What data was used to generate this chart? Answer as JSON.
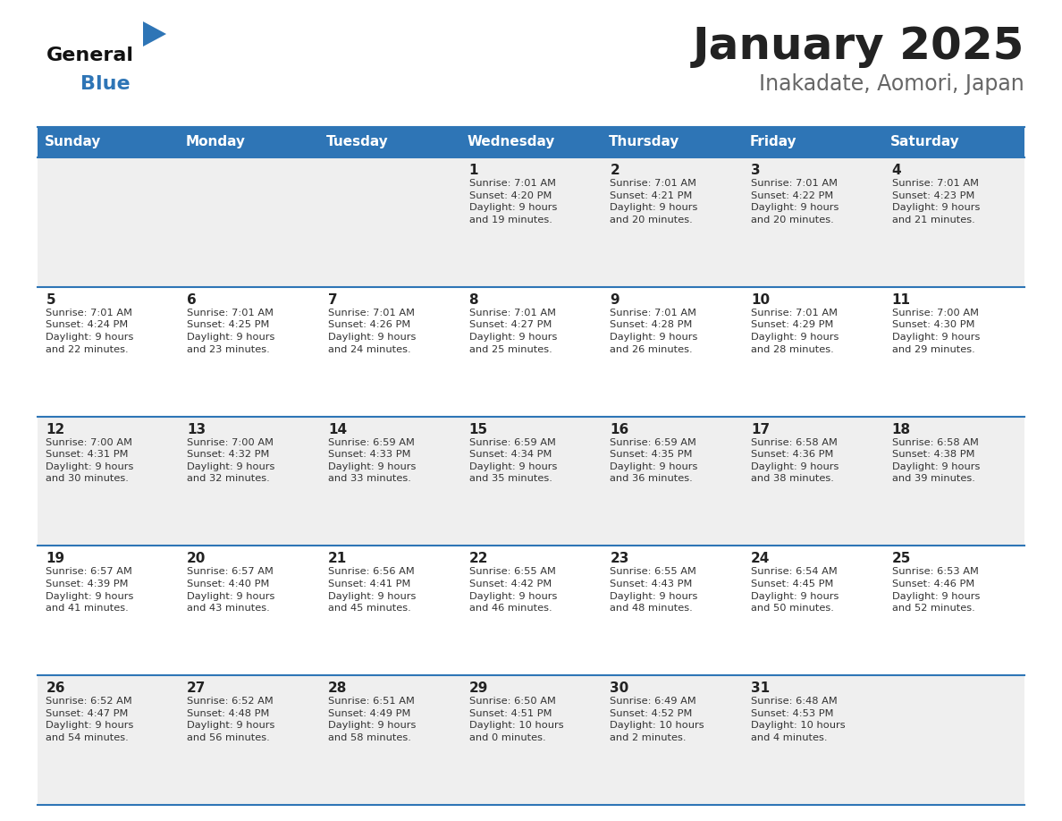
{
  "title": "January 2025",
  "subtitle": "Inakadate, Aomori, Japan",
  "days_of_week": [
    "Sunday",
    "Monday",
    "Tuesday",
    "Wednesday",
    "Thursday",
    "Friday",
    "Saturday"
  ],
  "header_bg": "#2E75B6",
  "header_text": "#FFFFFF",
  "cell_bg_even": "#EFEFEF",
  "cell_bg_odd": "#FFFFFF",
  "row_line_color": "#2E75B6",
  "day_num_color": "#222222",
  "cell_text_color": "#333333",
  "title_color": "#222222",
  "subtitle_color": "#666666",
  "logo_general_color": "#111111",
  "logo_blue_color": "#2E75B6",
  "calendar": [
    [
      {
        "day": null,
        "info": null
      },
      {
        "day": null,
        "info": null
      },
      {
        "day": null,
        "info": null
      },
      {
        "day": 1,
        "info": "Sunrise: 7:01 AM\nSunset: 4:20 PM\nDaylight: 9 hours\nand 19 minutes."
      },
      {
        "day": 2,
        "info": "Sunrise: 7:01 AM\nSunset: 4:21 PM\nDaylight: 9 hours\nand 20 minutes."
      },
      {
        "day": 3,
        "info": "Sunrise: 7:01 AM\nSunset: 4:22 PM\nDaylight: 9 hours\nand 20 minutes."
      },
      {
        "day": 4,
        "info": "Sunrise: 7:01 AM\nSunset: 4:23 PM\nDaylight: 9 hours\nand 21 minutes."
      }
    ],
    [
      {
        "day": 5,
        "info": "Sunrise: 7:01 AM\nSunset: 4:24 PM\nDaylight: 9 hours\nand 22 minutes."
      },
      {
        "day": 6,
        "info": "Sunrise: 7:01 AM\nSunset: 4:25 PM\nDaylight: 9 hours\nand 23 minutes."
      },
      {
        "day": 7,
        "info": "Sunrise: 7:01 AM\nSunset: 4:26 PM\nDaylight: 9 hours\nand 24 minutes."
      },
      {
        "day": 8,
        "info": "Sunrise: 7:01 AM\nSunset: 4:27 PM\nDaylight: 9 hours\nand 25 minutes."
      },
      {
        "day": 9,
        "info": "Sunrise: 7:01 AM\nSunset: 4:28 PM\nDaylight: 9 hours\nand 26 minutes."
      },
      {
        "day": 10,
        "info": "Sunrise: 7:01 AM\nSunset: 4:29 PM\nDaylight: 9 hours\nand 28 minutes."
      },
      {
        "day": 11,
        "info": "Sunrise: 7:00 AM\nSunset: 4:30 PM\nDaylight: 9 hours\nand 29 minutes."
      }
    ],
    [
      {
        "day": 12,
        "info": "Sunrise: 7:00 AM\nSunset: 4:31 PM\nDaylight: 9 hours\nand 30 minutes."
      },
      {
        "day": 13,
        "info": "Sunrise: 7:00 AM\nSunset: 4:32 PM\nDaylight: 9 hours\nand 32 minutes."
      },
      {
        "day": 14,
        "info": "Sunrise: 6:59 AM\nSunset: 4:33 PM\nDaylight: 9 hours\nand 33 minutes."
      },
      {
        "day": 15,
        "info": "Sunrise: 6:59 AM\nSunset: 4:34 PM\nDaylight: 9 hours\nand 35 minutes."
      },
      {
        "day": 16,
        "info": "Sunrise: 6:59 AM\nSunset: 4:35 PM\nDaylight: 9 hours\nand 36 minutes."
      },
      {
        "day": 17,
        "info": "Sunrise: 6:58 AM\nSunset: 4:36 PM\nDaylight: 9 hours\nand 38 minutes."
      },
      {
        "day": 18,
        "info": "Sunrise: 6:58 AM\nSunset: 4:38 PM\nDaylight: 9 hours\nand 39 minutes."
      }
    ],
    [
      {
        "day": 19,
        "info": "Sunrise: 6:57 AM\nSunset: 4:39 PM\nDaylight: 9 hours\nand 41 minutes."
      },
      {
        "day": 20,
        "info": "Sunrise: 6:57 AM\nSunset: 4:40 PM\nDaylight: 9 hours\nand 43 minutes."
      },
      {
        "day": 21,
        "info": "Sunrise: 6:56 AM\nSunset: 4:41 PM\nDaylight: 9 hours\nand 45 minutes."
      },
      {
        "day": 22,
        "info": "Sunrise: 6:55 AM\nSunset: 4:42 PM\nDaylight: 9 hours\nand 46 minutes."
      },
      {
        "day": 23,
        "info": "Sunrise: 6:55 AM\nSunset: 4:43 PM\nDaylight: 9 hours\nand 48 minutes."
      },
      {
        "day": 24,
        "info": "Sunrise: 6:54 AM\nSunset: 4:45 PM\nDaylight: 9 hours\nand 50 minutes."
      },
      {
        "day": 25,
        "info": "Sunrise: 6:53 AM\nSunset: 4:46 PM\nDaylight: 9 hours\nand 52 minutes."
      }
    ],
    [
      {
        "day": 26,
        "info": "Sunrise: 6:52 AM\nSunset: 4:47 PM\nDaylight: 9 hours\nand 54 minutes."
      },
      {
        "day": 27,
        "info": "Sunrise: 6:52 AM\nSunset: 4:48 PM\nDaylight: 9 hours\nand 56 minutes."
      },
      {
        "day": 28,
        "info": "Sunrise: 6:51 AM\nSunset: 4:49 PM\nDaylight: 9 hours\nand 58 minutes."
      },
      {
        "day": 29,
        "info": "Sunrise: 6:50 AM\nSunset: 4:51 PM\nDaylight: 10 hours\nand 0 minutes."
      },
      {
        "day": 30,
        "info": "Sunrise: 6:49 AM\nSunset: 4:52 PM\nDaylight: 10 hours\nand 2 minutes."
      },
      {
        "day": 31,
        "info": "Sunrise: 6:48 AM\nSunset: 4:53 PM\nDaylight: 10 hours\nand 4 minutes."
      },
      {
        "day": null,
        "info": null
      }
    ]
  ]
}
